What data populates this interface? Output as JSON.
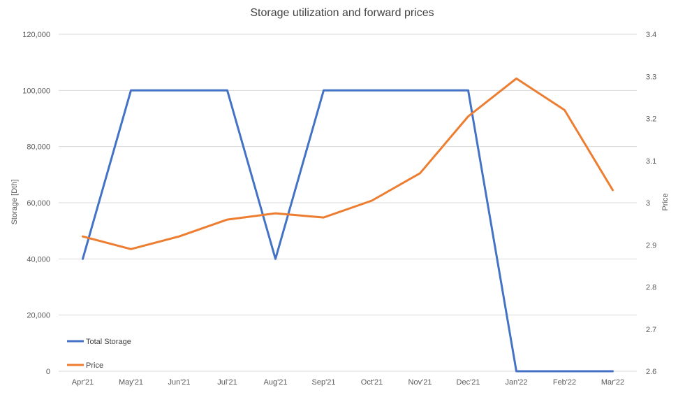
{
  "chart_data": {
    "type": "line",
    "title": "Storage utilization and forward prices",
    "categories": [
      "Apr'21",
      "May'21",
      "Jun'21",
      "Jul'21",
      "Aug'21",
      "Sep'21",
      "Oct'21",
      "Nov'21",
      "Dec'21",
      "Jan'22",
      "Feb'22",
      "Mar'22"
    ],
    "series": [
      {
        "name": "Total Storage",
        "axis": "left",
        "color": "#4472c4",
        "values": [
          40000,
          100000,
          100000,
          100000,
          40000,
          100000,
          100000,
          100000,
          100000,
          0,
          0,
          0
        ]
      },
      {
        "name": "Price",
        "axis": "right",
        "color": "#ed7d31",
        "values": [
          2.92,
          2.89,
          2.92,
          2.96,
          2.975,
          2.965,
          3.005,
          3.07,
          3.205,
          3.295,
          3.22,
          3.03
        ]
      }
    ],
    "y_left": {
      "label": "Storage [Dth]",
      "ylim": [
        0,
        120000
      ],
      "ticks": [
        "0",
        "20,000",
        "40,000",
        "60,000",
        "80,000",
        "100,000",
        "120,000"
      ]
    },
    "y_right": {
      "label": "Price",
      "ylim": [
        2.6,
        3.4
      ],
      "ticks": [
        "2.6",
        "2.7",
        "2.8",
        "2.9",
        "3",
        "3.1",
        "3.2",
        "3.3",
        "3.4"
      ]
    },
    "grid": true,
    "legend_placement": "bottom-left"
  }
}
